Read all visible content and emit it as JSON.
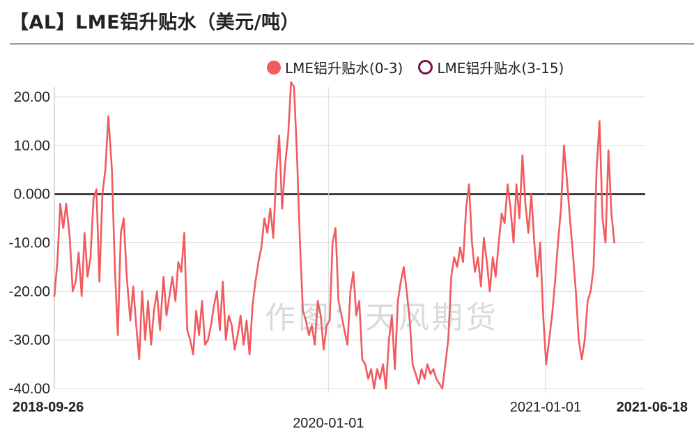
{
  "title": "【AL】LME铝升贴水（美元/吨）",
  "watermark": "作图：天风期货",
  "legend": [
    {
      "label": "LME铝升贴水(0-3)",
      "color": "#f25b5e",
      "marker": "filled"
    },
    {
      "label": "LME铝升贴水(3-15)",
      "color": "#7a1245",
      "marker": "hollow"
    }
  ],
  "chart_data": {
    "type": "line",
    "title": "【AL】LME铝升贴水（美元/吨）",
    "ylim": [
      -40,
      22
    ],
    "y_ticks": [
      "20.00",
      "10.00",
      "0.000",
      "-10.00",
      "-20.00",
      "-30.00",
      "-40.00"
    ],
    "y_tick_values": [
      20,
      10,
      0,
      -10,
      -20,
      -30,
      -40
    ],
    "x_range": [
      "2018-09-26",
      "2021-06-18"
    ],
    "x_tick_labels": [
      {
        "label": "2018-09-26",
        "date": "2018-09-26",
        "bold": true
      },
      {
        "label": "2020-01-01",
        "date": "2020-01-01",
        "bold": false
      },
      {
        "label": "2021-01-01",
        "date": "2021-01-01",
        "bold": false
      },
      {
        "label": "2021-06-18",
        "date": "2021-06-18",
        "bold": true
      }
    ],
    "grid": true,
    "zero_line": true,
    "series": [
      {
        "name": "LME铝升贴水(0-3)",
        "color": "#f25b5e",
        "points": [
          [
            "2018-09-26",
            -21
          ],
          [
            "2018-10-01",
            -14
          ],
          [
            "2018-10-06",
            -2
          ],
          [
            "2018-10-11",
            -7
          ],
          [
            "2018-10-16",
            -2
          ],
          [
            "2018-10-22",
            -9
          ],
          [
            "2018-10-27",
            -20
          ],
          [
            "2018-11-01",
            -18
          ],
          [
            "2018-11-06",
            -12
          ],
          [
            "2018-11-11",
            -21
          ],
          [
            "2018-11-16",
            -8
          ],
          [
            "2018-11-21",
            -17
          ],
          [
            "2018-11-26",
            -13
          ],
          [
            "2018-12-01",
            -1
          ],
          [
            "2018-12-06",
            1
          ],
          [
            "2018-12-11",
            -18
          ],
          [
            "2018-12-16",
            0
          ],
          [
            "2018-12-21",
            5
          ],
          [
            "2018-12-26",
            16
          ],
          [
            "2019-01-01",
            5
          ],
          [
            "2019-01-06",
            -15
          ],
          [
            "2019-01-11",
            -29
          ],
          [
            "2019-01-16",
            -8
          ],
          [
            "2019-01-21",
            -5
          ],
          [
            "2019-01-26",
            -17
          ],
          [
            "2019-02-01",
            -26
          ],
          [
            "2019-02-06",
            -19
          ],
          [
            "2019-02-11",
            -27
          ],
          [
            "2019-02-16",
            -34
          ],
          [
            "2019-02-21",
            -20
          ],
          [
            "2019-02-26",
            -30
          ],
          [
            "2019-03-03",
            -22
          ],
          [
            "2019-03-08",
            -31
          ],
          [
            "2019-03-13",
            -24
          ],
          [
            "2019-03-18",
            -20
          ],
          [
            "2019-03-23",
            -28
          ],
          [
            "2019-03-29",
            -17
          ],
          [
            "2019-04-03",
            -25
          ],
          [
            "2019-04-08",
            -21
          ],
          [
            "2019-04-13",
            -17
          ],
          [
            "2019-04-18",
            -22
          ],
          [
            "2019-04-23",
            -14
          ],
          [
            "2019-04-28",
            -16
          ],
          [
            "2019-05-03",
            -8
          ],
          [
            "2019-05-08",
            -28
          ],
          [
            "2019-05-13",
            -30
          ],
          [
            "2019-05-18",
            -33
          ],
          [
            "2019-05-23",
            -24
          ],
          [
            "2019-05-28",
            -29
          ],
          [
            "2019-06-02",
            -22
          ],
          [
            "2019-06-07",
            -31
          ],
          [
            "2019-06-12",
            -30
          ],
          [
            "2019-06-17",
            -27
          ],
          [
            "2019-06-22",
            -23
          ],
          [
            "2019-06-27",
            -20
          ],
          [
            "2019-07-02",
            -28
          ],
          [
            "2019-07-07",
            -18
          ],
          [
            "2019-07-12",
            -30
          ],
          [
            "2019-07-17",
            -25
          ],
          [
            "2019-07-22",
            -27
          ],
          [
            "2019-07-27",
            -32
          ],
          [
            "2019-08-01",
            -29
          ],
          [
            "2019-08-06",
            -25
          ],
          [
            "2019-08-11",
            -31
          ],
          [
            "2019-08-16",
            -26
          ],
          [
            "2019-08-21",
            -33
          ],
          [
            "2019-08-26",
            -23
          ],
          [
            "2019-08-31",
            -18
          ],
          [
            "2019-09-05",
            -14
          ],
          [
            "2019-09-10",
            -11
          ],
          [
            "2019-09-15",
            -5
          ],
          [
            "2019-09-20",
            -8
          ],
          [
            "2019-09-25",
            -3
          ],
          [
            "2019-09-30",
            -9
          ],
          [
            "2019-10-05",
            4
          ],
          [
            "2019-10-10",
            12
          ],
          [
            "2019-10-15",
            -3
          ],
          [
            "2019-10-20",
            6
          ],
          [
            "2019-10-25",
            12
          ],
          [
            "2019-10-30",
            23
          ],
          [
            "2019-11-04",
            22
          ],
          [
            "2019-11-09",
            8
          ],
          [
            "2019-11-14",
            -10
          ],
          [
            "2019-11-19",
            -24
          ],
          [
            "2019-11-24",
            -26
          ],
          [
            "2019-11-29",
            -29
          ],
          [
            "2019-12-04",
            -27
          ],
          [
            "2019-12-09",
            -31
          ],
          [
            "2019-12-14",
            -22
          ],
          [
            "2019-12-19",
            -25
          ],
          [
            "2019-12-24",
            -32
          ],
          [
            "2019-12-29",
            -27
          ],
          [
            "2020-01-03",
            -26
          ],
          [
            "2020-01-08",
            -10
          ],
          [
            "2020-01-13",
            -7
          ],
          [
            "2020-01-18",
            -22
          ],
          [
            "2020-01-23",
            -25
          ],
          [
            "2020-01-28",
            -28
          ],
          [
            "2020-02-02",
            -31
          ],
          [
            "2020-02-07",
            -20
          ],
          [
            "2020-02-12",
            -16
          ],
          [
            "2020-02-17",
            -25
          ],
          [
            "2020-02-22",
            -22
          ],
          [
            "2020-02-27",
            -34
          ],
          [
            "2020-03-03",
            -35
          ],
          [
            "2020-03-08",
            -38
          ],
          [
            "2020-03-13",
            -36
          ],
          [
            "2020-03-18",
            -40
          ],
          [
            "2020-03-23",
            -36
          ],
          [
            "2020-03-28",
            -38
          ],
          [
            "2020-04-02",
            -35
          ],
          [
            "2020-04-07",
            -40
          ],
          [
            "2020-04-12",
            -30
          ],
          [
            "2020-04-17",
            -25
          ],
          [
            "2020-04-22",
            -36
          ],
          [
            "2020-04-27",
            -22
          ],
          [
            "2020-05-02",
            -18
          ],
          [
            "2020-05-07",
            -15
          ],
          [
            "2020-05-12",
            -20
          ],
          [
            "2020-05-17",
            -26
          ],
          [
            "2020-05-22",
            -35
          ],
          [
            "2020-05-27",
            -37
          ],
          [
            "2020-06-01",
            -39
          ],
          [
            "2020-06-06",
            -36
          ],
          [
            "2020-06-11",
            -38
          ],
          [
            "2020-06-16",
            -35
          ],
          [
            "2020-06-21",
            -37
          ],
          [
            "2020-06-26",
            -36
          ],
          [
            "2020-07-01",
            -38
          ],
          [
            "2020-07-06",
            -39
          ],
          [
            "2020-07-11",
            -40
          ],
          [
            "2020-07-16",
            -35
          ],
          [
            "2020-07-21",
            -30
          ],
          [
            "2020-07-26",
            -17
          ],
          [
            "2020-07-31",
            -13
          ],
          [
            "2020-08-05",
            -15
          ],
          [
            "2020-08-10",
            -11
          ],
          [
            "2020-08-15",
            -14
          ],
          [
            "2020-08-20",
            -3
          ],
          [
            "2020-08-25",
            2
          ],
          [
            "2020-08-30",
            -10
          ],
          [
            "2020-09-04",
            -16
          ],
          [
            "2020-09-09",
            -13
          ],
          [
            "2020-09-14",
            -19
          ],
          [
            "2020-09-19",
            -9
          ],
          [
            "2020-09-24",
            -14
          ],
          [
            "2020-09-29",
            -20
          ],
          [
            "2020-10-04",
            -13
          ],
          [
            "2020-10-09",
            -17
          ],
          [
            "2020-10-14",
            -10
          ],
          [
            "2020-10-19",
            -4
          ],
          [
            "2020-10-24",
            -6
          ],
          [
            "2020-10-29",
            2
          ],
          [
            "2020-11-03",
            -3
          ],
          [
            "2020-11-08",
            -10
          ],
          [
            "2020-11-13",
            2
          ],
          [
            "2020-11-18",
            -5
          ],
          [
            "2020-11-23",
            8
          ],
          [
            "2020-11-28",
            -2
          ],
          [
            "2020-12-03",
            -8
          ],
          [
            "2020-12-08",
            0
          ],
          [
            "2020-12-13",
            -10
          ],
          [
            "2020-12-18",
            -17
          ],
          [
            "2020-12-23",
            -10
          ],
          [
            "2020-12-28",
            -25
          ],
          [
            "2021-01-02",
            -35
          ],
          [
            "2021-01-07",
            -30
          ],
          [
            "2021-01-12",
            -25
          ],
          [
            "2021-01-17",
            -18
          ],
          [
            "2021-01-22",
            -10
          ],
          [
            "2021-01-27",
            -3
          ],
          [
            "2021-02-01",
            10
          ],
          [
            "2021-02-06",
            3
          ],
          [
            "2021-02-11",
            -5
          ],
          [
            "2021-02-16",
            -12
          ],
          [
            "2021-02-21",
            -20
          ],
          [
            "2021-02-26",
            -30
          ],
          [
            "2021-03-03",
            -34
          ],
          [
            "2021-03-08",
            -30
          ],
          [
            "2021-03-13",
            -22
          ],
          [
            "2021-03-18",
            -20
          ],
          [
            "2021-03-23",
            -15
          ],
          [
            "2021-03-28",
            5
          ],
          [
            "2021-04-02",
            15
          ],
          [
            "2021-04-07",
            -5
          ],
          [
            "2021-04-12",
            -10
          ],
          [
            "2021-04-17",
            9
          ],
          [
            "2021-04-22",
            -4
          ],
          [
            "2021-04-27",
            -10
          ]
        ]
      },
      {
        "name": "LME铝升贴水(3-15)",
        "color": "#7a1245",
        "points": []
      }
    ]
  }
}
